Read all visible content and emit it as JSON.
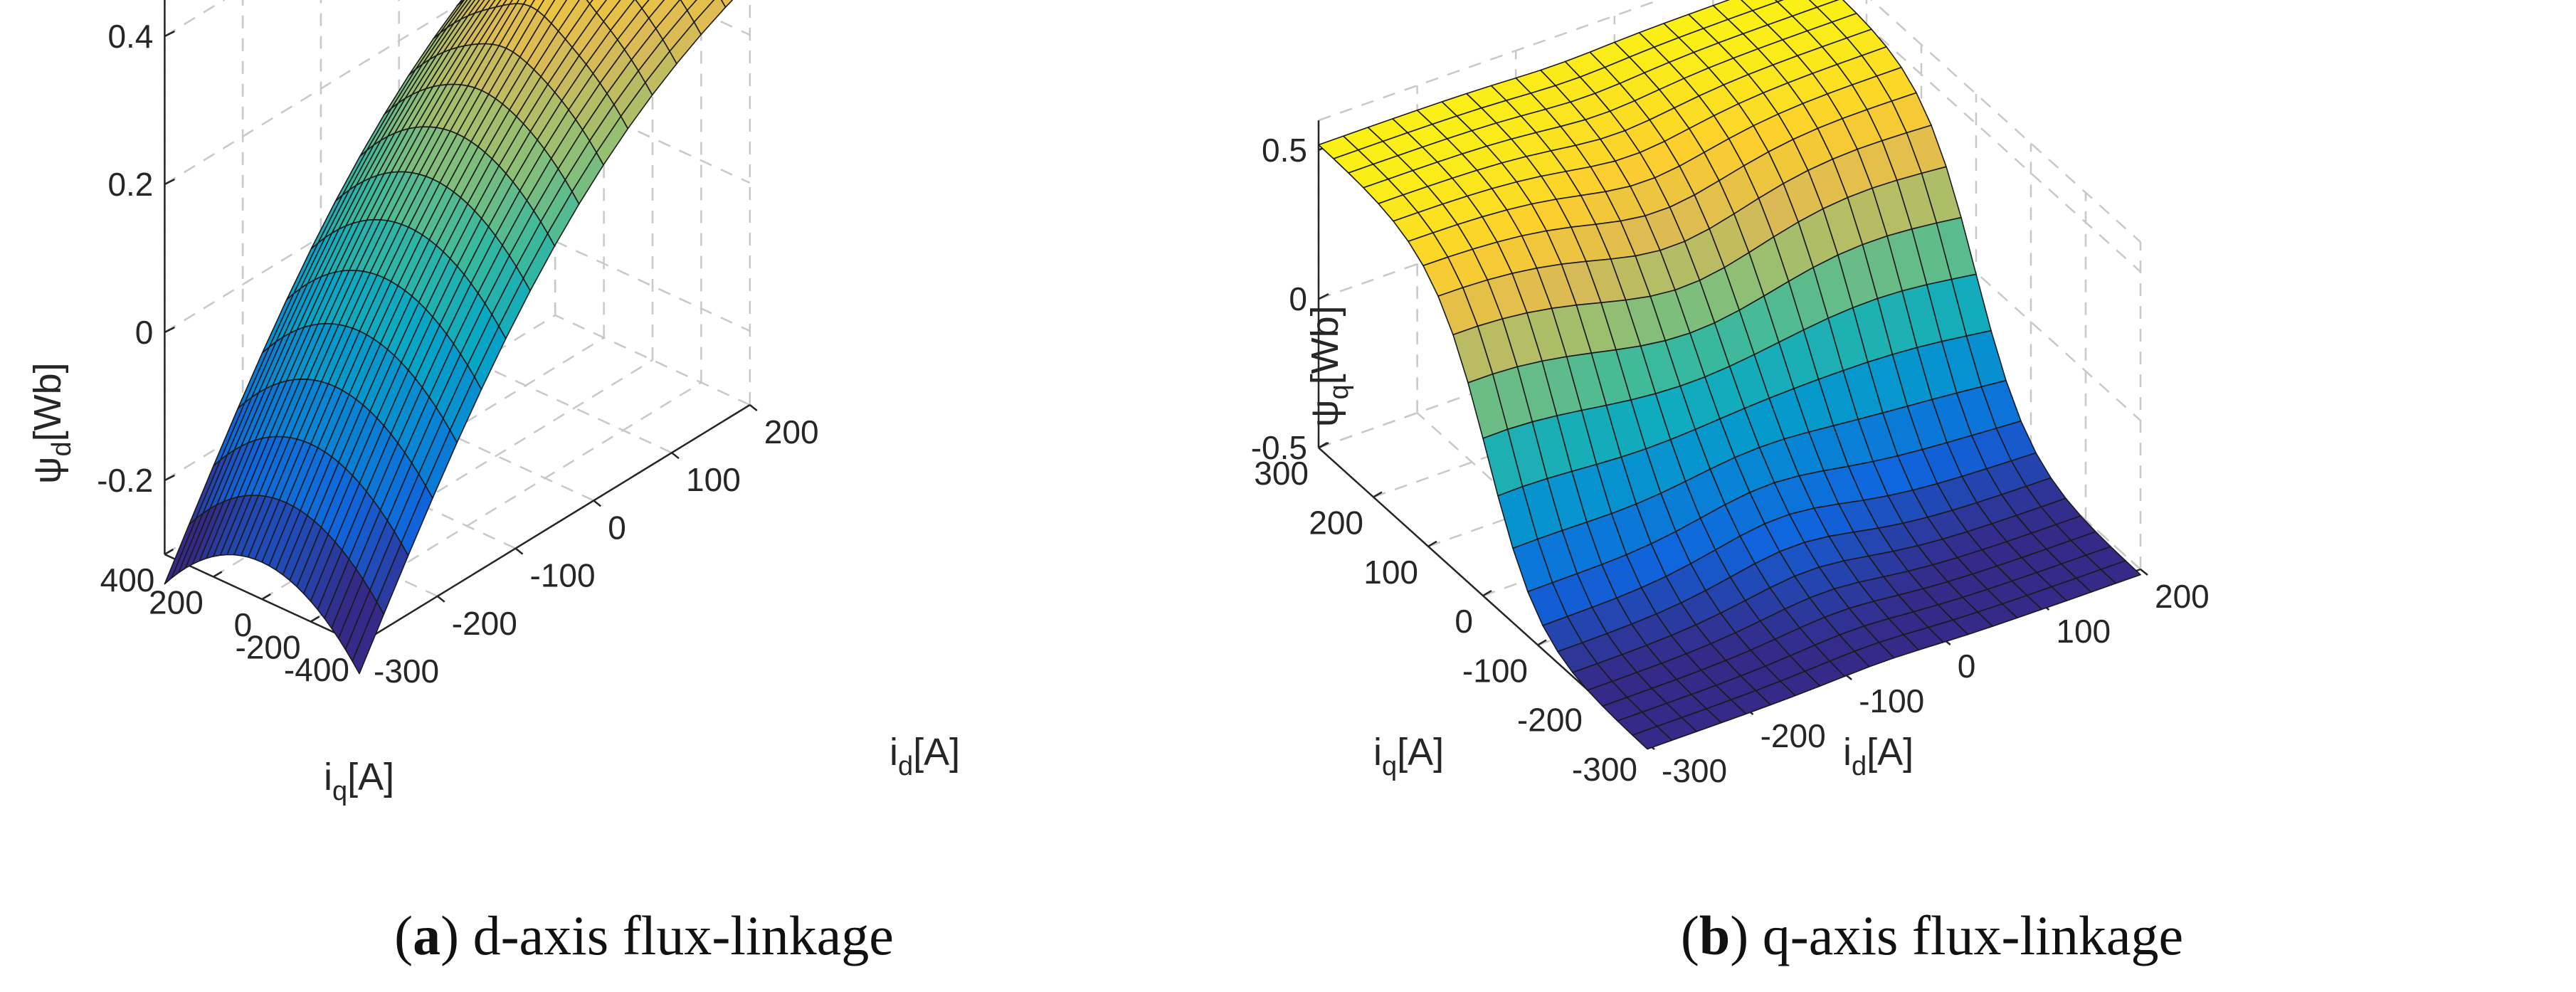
{
  "chart_data": [
    {
      "type": "surface",
      "caption_letter": "a",
      "caption_text": " d-axis flux-linkage",
      "zlabel_symbol": "ψ",
      "zlabel_sub": "d",
      "zlabel_unit": "[Wb]",
      "xlabel_symbol": "i",
      "xlabel_sub": "q",
      "xlabel_unit": "[A]",
      "ylabel_symbol": "i",
      "ylabel_sub": "d",
      "ylabel_unit": "[A]",
      "iq_range": [
        -400,
        400
      ],
      "id_range": [
        -300,
        200
      ],
      "z_range": [
        -0.3,
        0.45
      ],
      "iq_ticks": [
        "400",
        "200",
        "0",
        "-200",
        "-400"
      ],
      "iq_tick_values": [
        400,
        200,
        0,
        -200,
        -400
      ],
      "id_ticks": [
        "-300",
        "-200",
        "-100",
        "0",
        "100",
        "200"
      ],
      "id_tick_values": [
        -300,
        -200,
        -100,
        0,
        100,
        200
      ],
      "z_ticks": [
        "-0.2",
        "0",
        "0.2",
        "0.4"
      ],
      "z_tick_values": [
        -0.2,
        0,
        0.2,
        0.4
      ],
      "grid_n_iq": 28,
      "grid_n_id": 16,
      "description_of_values": "psi_d rises roughly linearly with i_d from about -0.24 Wb at i_d=-300 A to about 0.40 Wb near i_d=150 A, saturating; it is largest around i_q=0 and decreases for large |i_q| (cross saturation)."
    },
    {
      "type": "surface",
      "caption_letter": "b",
      "caption_text": " q-axis flux-linkage",
      "zlabel_symbol": "ψ",
      "zlabel_sub": "q",
      "zlabel_unit": "[Wb]",
      "xlabel_symbol": "i",
      "xlabel_sub": "q",
      "xlabel_unit": "[A]",
      "ylabel_symbol": "i",
      "ylabel_sub": "d",
      "ylabel_unit": "[A]",
      "iq_range": [
        -300,
        300
      ],
      "id_range": [
        -300,
        200
      ],
      "z_range": [
        -0.5,
        0.6
      ],
      "iq_ticks": [
        "300",
        "200",
        "100",
        "0",
        "-100",
        "-200",
        "-300"
      ],
      "iq_tick_values": [
        300,
        200,
        100,
        0,
        -100,
        -200,
        -300
      ],
      "id_ticks": [
        "-300",
        "-200",
        "-100",
        "0",
        "100",
        "200"
      ],
      "id_tick_values": [
        -300,
        -200,
        -100,
        0,
        100,
        200
      ],
      "z_ticks": [
        "0.5",
        "0",
        "-0.5"
      ],
      "z_tick_values": [
        0.5,
        0,
        -0.5
      ],
      "grid_n_iq": 22,
      "grid_n_id": 20,
      "description_of_values": "psi_q follows a saturating sigmoid in i_q: about -0.5 Wb at i_q=-300 A, 0 at i_q=0, about +0.5 Wb at i_q=300 A; the slope near i_q=0 is reduced around i_d=-100..0 A."
    }
  ]
}
